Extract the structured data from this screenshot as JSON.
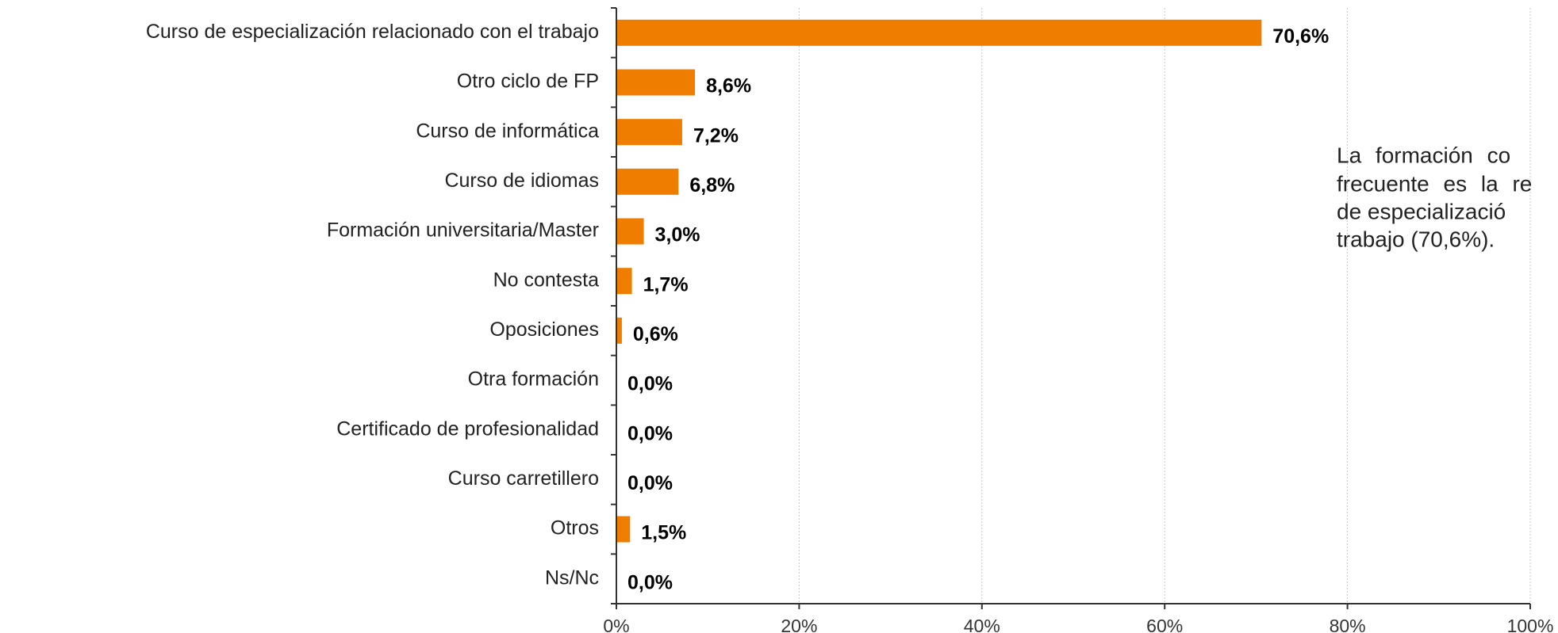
{
  "chart_data": {
    "type": "bar",
    "orientation": "horizontal",
    "categories": [
      "Curso de especialización relacionado con el trabajo",
      "Otro ciclo de FP",
      "Curso de informática",
      "Curso de idiomas",
      "Formación universitaria/Master",
      "No contesta",
      "Oposiciones",
      "Otra formación",
      "Certificado de profesionalidad",
      "Curso carretillero",
      "Otros",
      "Ns/Nc"
    ],
    "values": [
      70.6,
      8.6,
      7.2,
      6.8,
      3.0,
      1.7,
      0.6,
      0.0,
      0.0,
      0.0,
      1.5,
      0.0
    ],
    "value_labels": [
      "70,6%",
      "8,6%",
      "7,2%",
      "6,8%",
      "3,0%",
      "1,7%",
      "0,6%",
      "0,0%",
      "0,0%",
      "0,0%",
      "1,5%",
      "0,0%"
    ],
    "color": "#ef7d00",
    "xlim": [
      0,
      100
    ],
    "xticks": [
      {
        "value": 0,
        "label": "0%"
      },
      {
        "value": 20,
        "label": "20%"
      },
      {
        "value": 40,
        "label": "40%"
      },
      {
        "value": 60,
        "label": "60%"
      },
      {
        "value": 80,
        "label": "80%"
      },
      {
        "value": 100,
        "label": "100%"
      }
    ],
    "grid": true,
    "annotation": [
      "La formación co",
      "frecuente es la re",
      "de especializació",
      "trabajo (70,6%)."
    ]
  }
}
